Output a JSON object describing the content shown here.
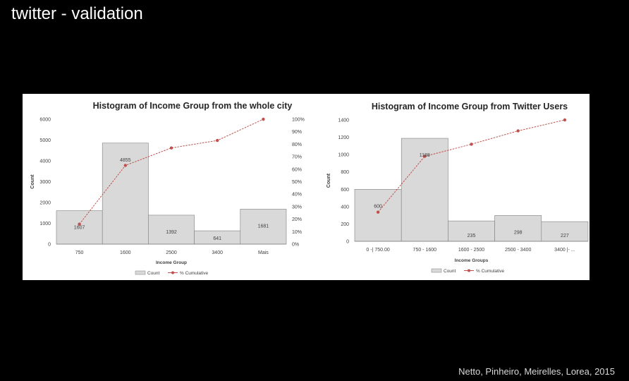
{
  "slide": {
    "title": "twitter - validation",
    "credit": "Netto, Pinheiro, Meirelles, Lorea, 2015"
  },
  "colors": {
    "bar_fill": "#d9d9d9",
    "bar_stroke": "#7f7f7f",
    "line": "#c0504d",
    "background": "#000000"
  },
  "chart_data": [
    {
      "type": "bar",
      "title": "Histogram of Income Group from the whole city",
      "xlabel": "Income Group",
      "ylabel": "Count",
      "categories": [
        "750",
        "1600",
        "2500",
        "3400",
        "Mais"
      ],
      "series": [
        {
          "name": "Count",
          "values": [
            1607,
            4855,
            1392,
            641,
            1681
          ],
          "axis": "left"
        },
        {
          "name": "% Cumulative",
          "type": "line",
          "values": [
            16,
            63,
            77,
            83,
            100
          ],
          "axis": "right"
        }
      ],
      "data_labels": [
        "1607",
        "4855",
        "1392",
        "641",
        "1681"
      ],
      "ylim": [
        0,
        6000
      ],
      "yticks": [
        "0",
        "1000",
        "2000",
        "3000",
        "4000",
        "5000",
        "6000"
      ],
      "y2lim": [
        0,
        100
      ],
      "y2ticks": [
        "0%",
        "10%",
        "20%",
        "30%",
        "40%",
        "50%",
        "60%",
        "70%",
        "80%",
        "90%",
        "100%"
      ],
      "legend": "bottom",
      "grid": false
    },
    {
      "type": "bar",
      "title": "Histogram of Income Group from Twitter Users",
      "xlabel": "Income Groups",
      "ylabel": "Count",
      "categories": [
        "0 -| 750.00",
        "750 - 1600",
        "1600 - 2500",
        "2500 - 3400",
        "3400 |- ..."
      ],
      "series": [
        {
          "name": "Count",
          "values": [
            600,
            1188,
            235,
            298,
            227
          ],
          "axis": "left"
        },
        {
          "name": "% Cumulative",
          "type": "line",
          "values": [
            24,
            70,
            80,
            91,
            100
          ],
          "axis": "right"
        }
      ],
      "data_labels": [
        "600",
        "1188",
        "235",
        "298",
        "227"
      ],
      "ylim": [
        0,
        1400
      ],
      "yticks": [
        "0",
        "200",
        "400",
        "600",
        "800",
        "1000",
        "1200",
        "1400"
      ],
      "y2lim": [
        0,
        100
      ],
      "y2ticks": [
        "0%",
        "10%",
        "20%",
        "30%",
        "40%",
        "50%",
        "60%",
        "70%",
        "80%",
        "90%",
        "100%"
      ],
      "legend": "bottom",
      "grid": false
    }
  ]
}
